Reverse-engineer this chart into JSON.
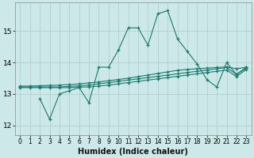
{
  "xlabel": "Humidex (Indice chaleur)",
  "bg_color": "#cce8e8",
  "grid_color": "#aacccc",
  "line_color": "#1a7a6e",
  "xlim": [
    -0.5,
    23.5
  ],
  "ylim": [
    11.7,
    15.9
  ],
  "yticks": [
    12,
    13,
    14,
    15
  ],
  "xticks": [
    0,
    1,
    2,
    3,
    4,
    5,
    6,
    7,
    8,
    9,
    10,
    11,
    12,
    13,
    14,
    15,
    16,
    17,
    18,
    19,
    20,
    21,
    22,
    23
  ],
  "line1_x": [
    0,
    1,
    2,
    3,
    4,
    5,
    6,
    7,
    8,
    9,
    10,
    11,
    12,
    13,
    14,
    15,
    16,
    17,
    18,
    19,
    20,
    21,
    22,
    23
  ],
  "line1_y": [
    13.25,
    13.25,
    13.26,
    13.27,
    13.28,
    13.3,
    13.32,
    13.35,
    13.38,
    13.42,
    13.46,
    13.5,
    13.55,
    13.6,
    13.65,
    13.7,
    13.75,
    13.78,
    13.8,
    13.82,
    13.84,
    13.86,
    13.8,
    13.85
  ],
  "line2_x": [
    0,
    1,
    2,
    3,
    4,
    5,
    6,
    7,
    8,
    9,
    10,
    11,
    12,
    13,
    14,
    15,
    16,
    17,
    18,
    19,
    20,
    21,
    22,
    23
  ],
  "line2_y": [
    13.22,
    13.22,
    13.22,
    13.22,
    13.22,
    13.24,
    13.26,
    13.28,
    13.32,
    13.36,
    13.4,
    13.44,
    13.48,
    13.52,
    13.56,
    13.6,
    13.64,
    13.68,
    13.72,
    13.76,
    13.8,
    13.84,
    13.62,
    13.82
  ],
  "line3_x": [
    0,
    1,
    2,
    3,
    4,
    5,
    6,
    7,
    8,
    9,
    10,
    11,
    12,
    13,
    14,
    15,
    16,
    17,
    18,
    19,
    20,
    21,
    22,
    23
  ],
  "line3_y": [
    13.2,
    13.2,
    13.2,
    13.2,
    13.2,
    13.2,
    13.22,
    13.22,
    13.25,
    13.28,
    13.32,
    13.36,
    13.4,
    13.44,
    13.48,
    13.52,
    13.56,
    13.6,
    13.64,
    13.68,
    13.72,
    13.76,
    13.55,
    13.78
  ],
  "line4_x": [
    2,
    3,
    4,
    5,
    6,
    7,
    8,
    9,
    10,
    11,
    12,
    13,
    14,
    15,
    16,
    17,
    18,
    19,
    20,
    21,
    22,
    23
  ],
  "line4_y": [
    12.85,
    12.2,
    13.0,
    13.1,
    13.2,
    12.72,
    13.85,
    13.85,
    14.4,
    15.1,
    15.1,
    14.55,
    15.55,
    15.65,
    14.75,
    14.35,
    13.95,
    13.45,
    13.22,
    14.0,
    13.62,
    13.85
  ]
}
